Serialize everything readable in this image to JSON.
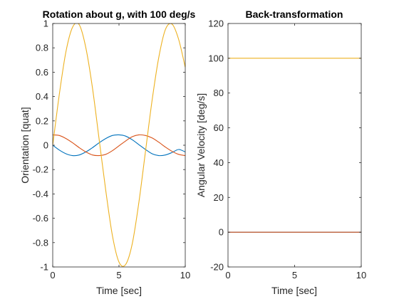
{
  "colors": {
    "blue": "#0072bd",
    "orange": "#d95319",
    "yellow": "#edb120",
    "axis": "#262626",
    "background": "#ffffff"
  },
  "chart_data": [
    {
      "type": "line",
      "title": "Rotation about g, with 100 deg/s",
      "xlabel": "Time [sec]",
      "ylabel": "Orientation [quat]",
      "xlim": [
        0,
        10
      ],
      "ylim": [
        -1,
        1
      ],
      "xticks": [
        "0",
        "5",
        "10"
      ],
      "yticks": [
        "-1",
        "-0.8",
        "-0.6",
        "-0.4",
        "-0.2",
        "0",
        "0.2",
        "0.4",
        "0.6",
        "0.8",
        "1"
      ],
      "grid": false,
      "series": [
        {
          "color": "#0072bd",
          "x": [
            0,
            0.5,
            1,
            1.5,
            2,
            2.5,
            3,
            3.5,
            4,
            4.5,
            5,
            5.5,
            6,
            6.5,
            7,
            7.5,
            8,
            8.5,
            9,
            9.5,
            10
          ],
          "y": [
            0,
            -0.04,
            -0.07,
            -0.085,
            -0.08,
            -0.055,
            -0.02,
            0.02,
            0.055,
            0.08,
            0.085,
            0.075,
            0.045,
            0.005,
            -0.035,
            -0.07,
            -0.085,
            -0.08,
            -0.06,
            -0.035,
            -0.055
          ]
        },
        {
          "color": "#d95319",
          "x": [
            0,
            0.5,
            1,
            1.5,
            2,
            2.5,
            3,
            3.5,
            4,
            4.5,
            5,
            5.5,
            6,
            6.5,
            7,
            7.5,
            8,
            8.5,
            9,
            9.5,
            10
          ],
          "y": [
            0.085,
            0.08,
            0.055,
            0.02,
            -0.02,
            -0.055,
            -0.08,
            -0.085,
            -0.075,
            -0.045,
            -0.005,
            0.035,
            0.07,
            0.085,
            0.08,
            0.06,
            0.025,
            -0.015,
            -0.05,
            -0.075,
            -0.085
          ]
        },
        {
          "color": "#edb120",
          "x": [
            0,
            0.5,
            1,
            1.5,
            2,
            2.5,
            3,
            3.5,
            4,
            4.5,
            5,
            5.5,
            6,
            6.5,
            7,
            7.5,
            8,
            8.5,
            9,
            9.5,
            10
          ],
          "y": [
            0,
            0.42,
            0.77,
            0.97,
            0.99,
            0.8,
            0.47,
            0.05,
            -0.37,
            -0.74,
            -0.96,
            -0.98,
            -0.81,
            -0.47,
            -0.05,
            0.37,
            0.72,
            0.95,
            0.995,
            0.87,
            0.64
          ]
        }
      ]
    },
    {
      "type": "line",
      "title": "Back-transformation",
      "xlabel": "Time [sec]",
      "ylabel": "Angular Velocity [deg/s]",
      "xlim": [
        0,
        10
      ],
      "ylim": [
        -20,
        120
      ],
      "xticks": [
        "0",
        "5",
        "10"
      ],
      "yticks": [
        "-20",
        "0",
        "20",
        "40",
        "60",
        "80",
        "100",
        "120"
      ],
      "grid": false,
      "series": [
        {
          "color": "#0072bd",
          "x": [
            0,
            10
          ],
          "y": [
            0,
            0
          ]
        },
        {
          "color": "#d95319",
          "x": [
            0,
            10
          ],
          "y": [
            0,
            0
          ]
        },
        {
          "color": "#edb120",
          "x": [
            0,
            10
          ],
          "y": [
            100,
            100
          ]
        }
      ]
    }
  ]
}
